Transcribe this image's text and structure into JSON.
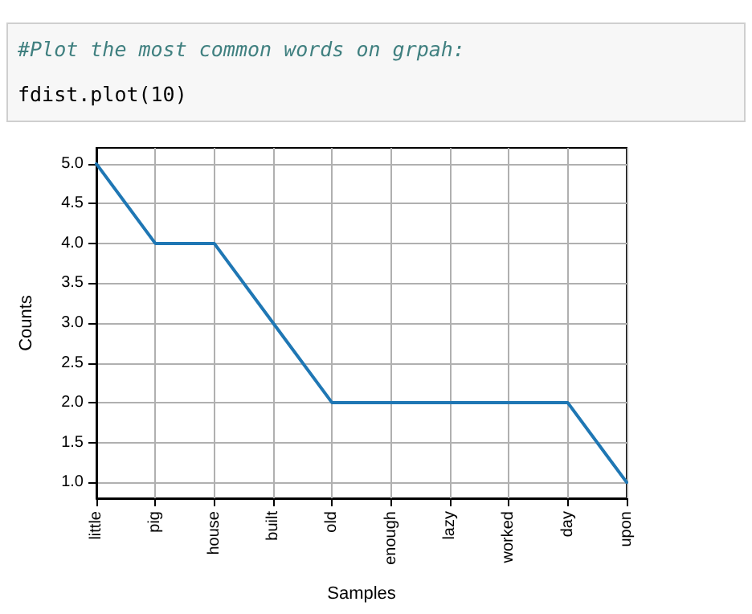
{
  "chart_data": {
    "type": "line",
    "xlabel": "Samples",
    "ylabel": "Counts",
    "annotations": [
      "#Plot the most common words on grpah:",
      "fdist.plot(10)"
    ],
    "categories": [
      "little",
      "pig",
      "house",
      "built",
      "old",
      "enough",
      "lazy",
      "worked",
      "day",
      "upon"
    ],
    "series": [
      {
        "color": "#1f77b4",
        "values": [
          5,
          4,
          4,
          3,
          2,
          2,
          2,
          2,
          2,
          1
        ]
      }
    ],
    "ylim": [
      0.8,
      5.2
    ],
    "yticks": [
      {
        "value": 1,
        "label": "1.0"
      },
      {
        "value": 1.5,
        "label": "1.5"
      },
      {
        "value": 2,
        "label": "2.0"
      },
      {
        "value": 2.5,
        "label": "2.5"
      },
      {
        "value": 3,
        "label": "3.0"
      },
      {
        "value": 3.5,
        "label": "3.5"
      },
      {
        "value": 4,
        "label": "4.0"
      },
      {
        "value": 4.5,
        "label": "4.5"
      },
      {
        "value": 5,
        "label": "5.0"
      }
    ],
    "grid": true,
    "marker": "none",
    "line_style": "solid"
  }
}
